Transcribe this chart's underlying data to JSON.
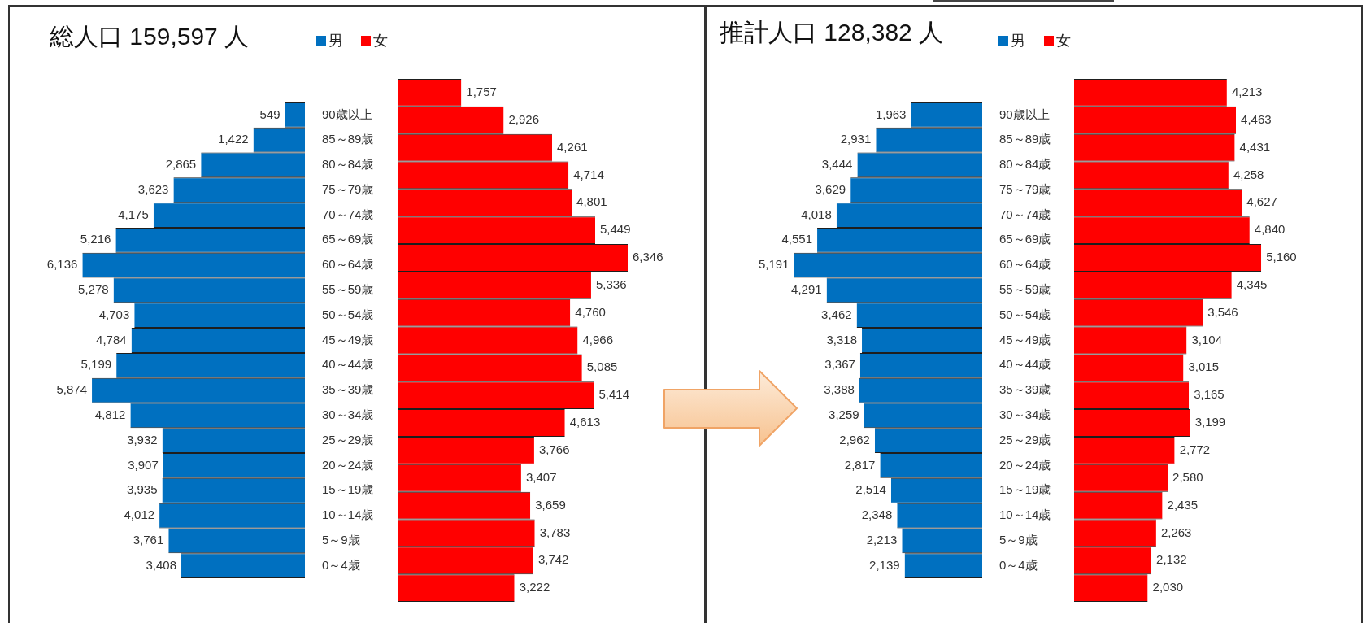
{
  "chart_data": [
    {
      "type": "bar",
      "title": "総人口 159,597 人",
      "orientation": "horizontal",
      "legend": "top right",
      "tick_labels": "y",
      "categories": [
        "90歳以上",
        "85～89歳",
        "80～84歳",
        "75～79歳",
        "70～74歳",
        "65～69歳",
        "60～64歳",
        "55～59歳",
        "50～54歳",
        "45～49歳",
        "40～44歳",
        "35～39歳",
        "30～34歳",
        "25～29歳",
        "20～24歳",
        "15～19歳",
        "10～14歳",
        "5～9歳",
        "0～4歳"
      ],
      "series": [
        {
          "name": "男",
          "color": "#0070c0",
          "values": [
            549,
            1422,
            2865,
            3623,
            4175,
            5216,
            6136,
            5278,
            4703,
            4784,
            5199,
            5874,
            4812,
            3932,
            3907,
            3935,
            4012,
            3761,
            3408
          ],
          "value_labels": [
            "549",
            "1,422",
            "2,865",
            "3,623",
            "4,175",
            "5,216",
            "6,136",
            "5,278",
            "4,703",
            "4,784",
            "5,199",
            "5,874",
            "4,812",
            "3,932",
            "3,907",
            "3,935",
            "4,012",
            "3,761",
            "3,408"
          ]
        }
      ]
    },
    {
      "type": "bar",
      "orientation": "horizontal",
      "legend": "top left",
      "categories": [
        null,
        null,
        null,
        null,
        null,
        null,
        null,
        null,
        null,
        null,
        null,
        null,
        null,
        null,
        null,
        null,
        null,
        null,
        null
      ],
      "series": [
        {
          "name": "女",
          "color": "#ff0000",
          "values": [
            1757,
            2926,
            4261,
            4714,
            4801,
            5449,
            6346,
            5336,
            4760,
            4966,
            5085,
            5414,
            4613,
            3766,
            3407,
            3659,
            3783,
            3742,
            3222
          ],
          "value_labels": [
            "1,757",
            "2,926",
            "4,261",
            "4,714",
            "4,801",
            "5,449",
            "6,346",
            "5,336",
            "4,760",
            "4,966",
            "5,085",
            "5,414",
            "4,613",
            "3,766",
            "3,407",
            "3,659",
            "3,783",
            "3,742",
            "3,222"
          ]
        }
      ]
    },
    {
      "type": "bar",
      "title": "推計人口 128,382 人",
      "orientation": "horizontal",
      "legend": "top right",
      "tick_labels": "y",
      "categories": [
        "90歳以上",
        "85～89歳",
        "80～84歳",
        "75～79歳",
        "70～74歳",
        "65～69歳",
        "60～64歳",
        "55～59歳",
        "50～54歳",
        "45～49歳",
        "40～44歳",
        "35～39歳",
        "30～34歳",
        "25～29歳",
        "20～24歳",
        "15～19歳",
        "10～14歳",
        "5～9歳",
        "0～4歳"
      ],
      "series": [
        {
          "name": "男",
          "color": "#0070c0",
          "values": [
            1963,
            2931,
            3444,
            3629,
            4018,
            4551,
            5191,
            4291,
            3462,
            3318,
            3367,
            3388,
            3259,
            2962,
            2817,
            2514,
            2348,
            2213,
            2139
          ],
          "value_labels": [
            "1,963",
            "2,931",
            "3,444",
            "3,629",
            "4,018",
            "4,551",
            "5,191",
            "4,291",
            "3,462",
            "3,318",
            "3,367",
            "3,388",
            "3,259",
            "2,962",
            "2,817",
            "2,514",
            "2,348",
            "2,213",
            "2,139"
          ]
        }
      ]
    },
    {
      "type": "bar",
      "orientation": "horizontal",
      "legend": "top left",
      "categories": [
        null,
        null,
        null,
        null,
        null,
        null,
        null,
        null,
        null,
        null,
        null,
        null,
        null,
        null,
        null,
        null,
        null,
        null,
        null
      ],
      "series": [
        {
          "name": "女",
          "color": "#ff0000",
          "values": [
            4213,
            4463,
            4431,
            4258,
            4627,
            4840,
            5160,
            4345,
            3546,
            3104,
            3015,
            3165,
            3199,
            2772,
            2580,
            2435,
            2263,
            2132,
            2030
          ],
          "value_labels": [
            "4,213",
            "4,463",
            "4,431",
            "4,258",
            "4,627",
            "4,840",
            "5,160",
            "4,345",
            "3,546",
            "3,104",
            "3,015",
            "3,165",
            "3,199",
            "2,772",
            "2,580",
            "2,435",
            "2,263",
            "2,132",
            "2,030"
          ]
        }
      ]
    }
  ]
}
